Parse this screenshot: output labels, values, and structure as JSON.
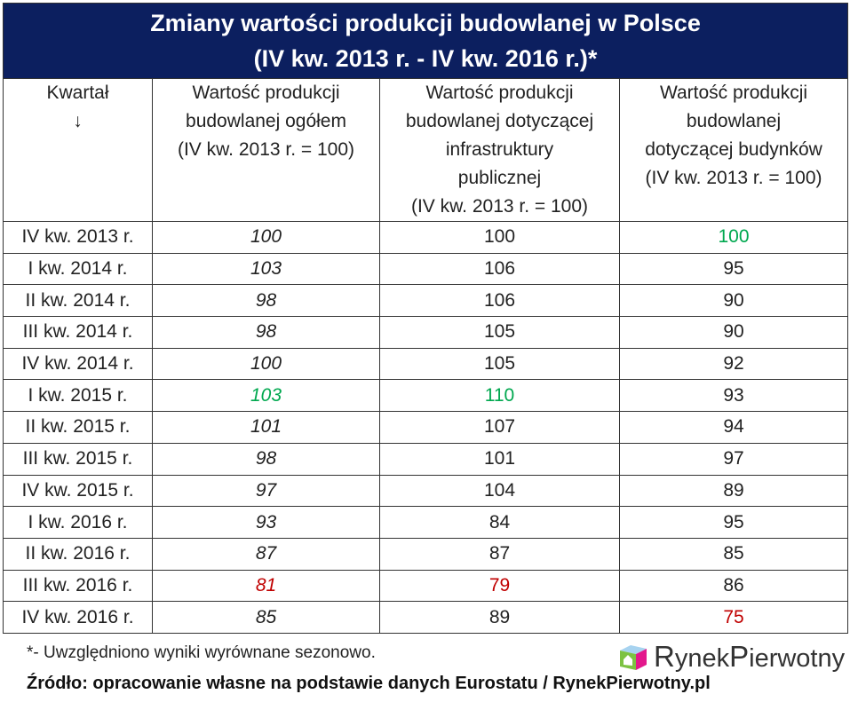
{
  "title_line1": "Zmiany wartości produkcji budowlanej w Polsce",
  "title_line2": "(IV kw. 2013 r. - IV kw. 2016 r.)*",
  "headers": [
    [
      "Kwartał",
      "↓"
    ],
    [
      "Wartość produkcji",
      "budowlanej ogółem",
      "(IV kw. 2013 r. = 100)"
    ],
    [
      "Wartość produkcji",
      "budowlanej dotyczącej",
      "infrastruktury",
      "publicznej",
      "(IV kw. 2013 r. = 100)"
    ],
    [
      "Wartość produkcji",
      "budowlanej",
      "dotyczącej budynków",
      "(IV kw. 2013 r. = 100)"
    ]
  ],
  "rows": [
    [
      "IV kw. 2013 r.",
      "100",
      "100",
      "100"
    ],
    [
      "I kw. 2014 r.",
      "103",
      "106",
      "95"
    ],
    [
      "II kw. 2014 r.",
      "98",
      "106",
      "90"
    ],
    [
      "III kw. 2014 r.",
      "98",
      "105",
      "90"
    ],
    [
      "IV kw. 2014 r.",
      "100",
      "105",
      "92"
    ],
    [
      "I kw. 2015 r.",
      "103",
      "110",
      "93"
    ],
    [
      "II kw. 2015 r.",
      "101",
      "107",
      "94"
    ],
    [
      "III kw. 2015 r.",
      "98",
      "101",
      "97"
    ],
    [
      "IV kw. 2015 r.",
      "97",
      "104",
      "89"
    ],
    [
      "I kw. 2016 r.",
      "93",
      "84",
      "95"
    ],
    [
      "II kw. 2016 r.",
      "87",
      "87",
      "85"
    ],
    [
      "III kw. 2016 r.",
      "81",
      "79",
      "86"
    ],
    [
      "IV kw. 2016 r.",
      "85",
      "89",
      "75"
    ]
  ],
  "highlights": {
    "green": [
      [
        5,
        1
      ],
      [
        5,
        2
      ],
      [
        0,
        3
      ]
    ],
    "red": [
      [
        11,
        1
      ],
      [
        11,
        2
      ],
      [
        12,
        3
      ]
    ]
  },
  "colors": {
    "header_bg": "#0c1f5f",
    "max": "#00a84f",
    "min": "#c00000"
  },
  "footnote": "*- Uwzględniono wyniki wyrównane sezonowo.",
  "source": "Źródło: opracowanie własne na podstawie danych Eurostatu / RynekPierwotny.pl",
  "logo_text": "RynekPierwotny",
  "chart_data": {
    "type": "table",
    "title": "Zmiany wartości produkcji budowlanej w Polsce (IV kw. 2013 r. - IV kw. 2016 r.)*",
    "categories": [
      "IV kw. 2013 r.",
      "I kw. 2014 r.",
      "II kw. 2014 r.",
      "III kw. 2014 r.",
      "IV kw. 2014 r.",
      "I kw. 2015 r.",
      "II kw. 2015 r.",
      "III kw. 2015 r.",
      "IV kw. 2015 r.",
      "I kw. 2016 r.",
      "II kw. 2016 r.",
      "III kw. 2016 r.",
      "IV kw. 2016 r."
    ],
    "series": [
      {
        "name": "Wartość produkcji budowlanej ogółem (IV kw. 2013 r. = 100)",
        "values": [
          100,
          103,
          98,
          98,
          100,
          103,
          101,
          98,
          97,
          93,
          87,
          81,
          85
        ]
      },
      {
        "name": "Wartość produkcji budowlanej dotyczącej infrastruktury publicznej (IV kw. 2013 r. = 100)",
        "values": [
          100,
          106,
          106,
          105,
          105,
          110,
          107,
          101,
          104,
          84,
          87,
          79,
          89
        ]
      },
      {
        "name": "Wartość produkcji budowlanej dotyczącej budynków (IV kw. 2013 r. = 100)",
        "values": [
          100,
          95,
          90,
          90,
          92,
          93,
          94,
          97,
          89,
          95,
          85,
          86,
          75
        ]
      }
    ]
  }
}
